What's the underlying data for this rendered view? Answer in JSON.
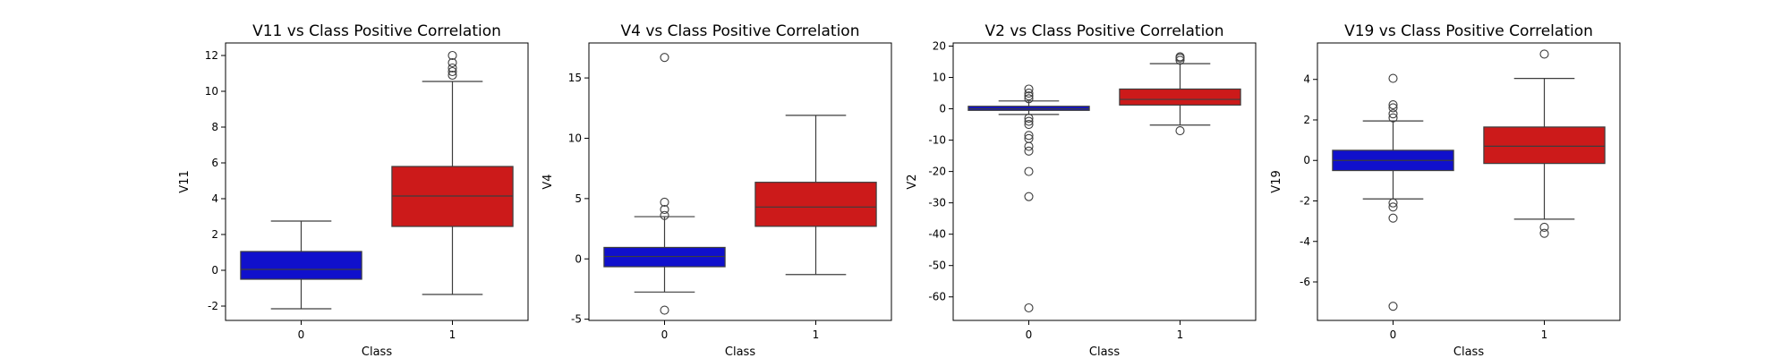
{
  "chart_data": [
    {
      "type": "box",
      "title": "V11 vs Class Positive Correlation",
      "xlabel": "Class",
      "ylabel": "V11",
      "categories": [
        "0",
        "1"
      ],
      "colors": [
        "#1010cc",
        "#cc1a1a"
      ],
      "ylim": [
        -2.8,
        12.7
      ],
      "yticks": [
        -2,
        0,
        2,
        4,
        6,
        8,
        10,
        12
      ],
      "boxes": [
        {
          "category": "0",
          "q1": -0.5,
          "median": 0.05,
          "q3": 1.05,
          "whisker_low": -2.15,
          "whisker_high": 2.75,
          "outliers": []
        },
        {
          "category": "1",
          "q1": 2.45,
          "median": 4.15,
          "q3": 5.8,
          "whisker_low": -1.35,
          "whisker_high": 10.55,
          "outliers": [
            10.9,
            11.1,
            11.3,
            11.6,
            12.0
          ]
        }
      ]
    },
    {
      "type": "box",
      "title": "V4 vs Class Positive Correlation",
      "xlabel": "Class",
      "ylabel": "V4",
      "categories": [
        "0",
        "1"
      ],
      "colors": [
        "#1010cc",
        "#cc1a1a"
      ],
      "ylim": [
        -5.1,
        17.9
      ],
      "yticks": [
        -5,
        0,
        5,
        10,
        15
      ],
      "boxes": [
        {
          "category": "0",
          "q1": -0.65,
          "median": 0.2,
          "q3": 0.95,
          "whisker_low": -2.75,
          "whisker_high": 3.5,
          "outliers": [
            3.6,
            4.1,
            4.7,
            16.7,
            -4.25
          ]
        },
        {
          "category": "1",
          "q1": 2.7,
          "median": 4.3,
          "q3": 6.35,
          "whisker_low": -1.3,
          "whisker_high": 11.9,
          "outliers": []
        }
      ]
    },
    {
      "type": "box",
      "title": "V2 vs Class Positive Correlation",
      "xlabel": "Class",
      "ylabel": "V2",
      "categories": [
        "0",
        "1"
      ],
      "colors": [
        "#1010cc",
        "#cc1a1a"
      ],
      "ylim": [
        -67.5,
        21
      ],
      "yticks": [
        -60,
        -50,
        -40,
        -30,
        -20,
        -10,
        0,
        10,
        20
      ],
      "boxes": [
        {
          "category": "0",
          "q1": -0.5,
          "median": 0.0,
          "q3": 0.8,
          "whisker_low": -1.8,
          "whisker_high": 2.5,
          "outliers": [
            3.2,
            4.1,
            5.0,
            6.3,
            -3.0,
            -4.0,
            -5.0,
            -8.5,
            -9.5,
            -12.0,
            -13.5,
            -20.0,
            -28.0,
            -63.5
          ]
        },
        {
          "category": "1",
          "q1": 1.2,
          "median": 3.0,
          "q3": 6.3,
          "whisker_low": -5.2,
          "whisker_high": 14.4,
          "outliers": [
            15.5,
            16.2,
            16.6,
            -7.0
          ]
        }
      ]
    },
    {
      "type": "box",
      "title": "V19 vs Class Positive Correlation",
      "xlabel": "Class",
      "ylabel": "V19",
      "categories": [
        "0",
        "1"
      ],
      "colors": [
        "#1010cc",
        "#cc1a1a"
      ],
      "ylim": [
        -7.9,
        5.8
      ],
      "yticks": [
        -6,
        -4,
        -2,
        0,
        2,
        4
      ],
      "boxes": [
        {
          "category": "0",
          "q1": -0.5,
          "median": 0.0,
          "q3": 0.5,
          "whisker_low": -1.9,
          "whisker_high": 1.95,
          "outliers": [
            2.1,
            2.3,
            2.6,
            2.75,
            4.05,
            -2.1,
            -2.3,
            -2.85,
            -7.2
          ]
        },
        {
          "category": "1",
          "q1": -0.15,
          "median": 0.7,
          "q3": 1.65,
          "whisker_low": -2.9,
          "whisker_high": 4.05,
          "outliers": [
            5.25,
            -3.3,
            -3.6
          ]
        }
      ]
    }
  ]
}
